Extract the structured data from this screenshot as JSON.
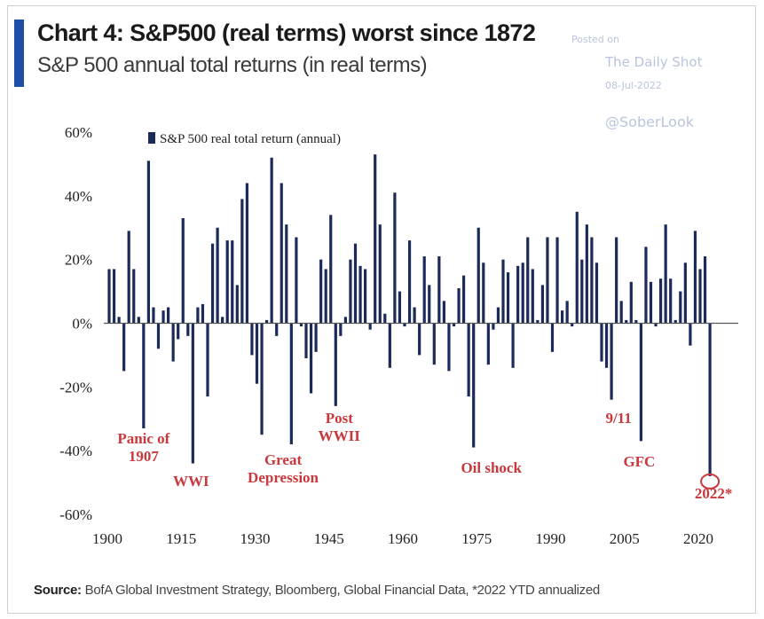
{
  "header": {
    "title": "Chart 4: S&P500 (real terms) worst since 1872",
    "subtitle": "S&P 500 annual total returns (in real terms)"
  },
  "watermark": {
    "posted_on": "Posted on",
    "publisher": "The Daily Shot",
    "date": "08-Jul-2022",
    "handle": "@SoberLook"
  },
  "footer": {
    "source_label": "Source:",
    "source_text": " BofA Global Investment Strategy, Bloomberg, Global Financial Data, *2022 YTD annualized"
  },
  "colors": {
    "bar": "#1c2a5a",
    "annotation": "#c8383c",
    "accent": "#1f4ea6"
  },
  "chart_data": {
    "type": "bar",
    "title": "Chart 4: S&P500 (real terms) worst since 1872",
    "subtitle": "S&P 500 annual total returns (in real terms)",
    "xlabel": "",
    "ylabel": "",
    "ylim": [
      -60,
      60
    ],
    "yticks": [
      60,
      40,
      20,
      0,
      -20,
      -40,
      -60
    ],
    "ytick_labels": [
      "60%",
      "40%",
      "20%",
      "0%",
      "-20%",
      "-40%",
      "-60%"
    ],
    "xticks": [
      1900,
      1915,
      1930,
      1945,
      1960,
      1975,
      1990,
      2005,
      2020
    ],
    "xtick_labels": [
      "1900",
      "1915",
      "1930",
      "1945",
      "1960",
      "1975",
      "1990",
      "2005",
      "2020"
    ],
    "grid": false,
    "legend": {
      "position": "top-left",
      "entries": [
        "S&P 500 real total return (annual)"
      ]
    },
    "series": [
      {
        "name": "S&P 500 real total return (annual)",
        "start_year": 1900,
        "values": [
          17,
          17,
          2,
          -15,
          29,
          17,
          2,
          -33,
          51,
          5,
          -8,
          4,
          5,
          -12,
          -5,
          33,
          -4,
          -44,
          5,
          6,
          -23,
          25,
          30,
          2,
          26,
          26,
          12,
          39,
          44,
          -10,
          -19,
          -35,
          1,
          52,
          -4,
          44,
          31,
          -38,
          27,
          -1,
          -11,
          -22,
          -9,
          20,
          17,
          34,
          -26,
          -4,
          2,
          20,
          25,
          18,
          17,
          -2,
          53,
          31,
          3,
          -14,
          41,
          10,
          -1,
          26,
          5,
          -10,
          21,
          12,
          -13,
          21,
          7,
          -15,
          -1,
          11,
          15,
          -23,
          -39,
          30,
          19,
          -13,
          -2,
          5,
          20,
          16,
          -14,
          18,
          19,
          27,
          17,
          1,
          12,
          27,
          -9,
          27,
          4,
          7,
          -1,
          35,
          20,
          31,
          27,
          19,
          -12,
          -14,
          -24,
          27,
          7,
          1,
          13,
          1,
          -37,
          24,
          13,
          -1,
          14,
          31,
          14,
          1,
          10,
          19,
          -7,
          29,
          17,
          21,
          -48
        ]
      }
    ],
    "annotations": [
      {
        "text": [
          "Panic of",
          "1907"
        ],
        "year": 1907
      },
      {
        "text": [
          "WWI"
        ],
        "year": 1917
      },
      {
        "text": [
          "Great",
          "Depression"
        ],
        "year": 1931
      },
      {
        "text": [
          "Post",
          "WWII"
        ],
        "year": 1946
      },
      {
        "text": [
          "Oil shock"
        ],
        "year": 1974
      },
      {
        "text": [
          "9/11"
        ],
        "year": 2002
      },
      {
        "text": [
          "GFC"
        ],
        "year": 2008
      },
      {
        "text": [
          "2022*"
        ],
        "year": 2022,
        "circled": true
      }
    ]
  }
}
